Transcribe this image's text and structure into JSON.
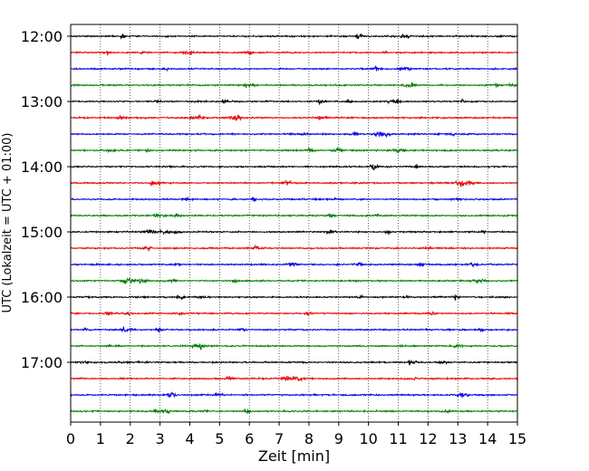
{
  "chart_data": {
    "type": "line",
    "title": "",
    "xlabel": "Zeit  [min]",
    "ylabel": "UTC (Lokalzeit = UTC + 01:00)",
    "xlim": [
      0,
      15
    ],
    "x_ticks": [
      "0",
      "1",
      "2",
      "3",
      "4",
      "5",
      "6",
      "7",
      "8",
      "9",
      "10",
      "11",
      "12",
      "13",
      "14",
      "15"
    ],
    "y_ticks": [
      "12:00",
      "13:00",
      "14:00",
      "15:00",
      "16:00",
      "17:00"
    ],
    "trace_interval_min": 15,
    "trace_start": "12:00",
    "trace_count": 24,
    "trace_colors": [
      "#000000",
      "#ff0000",
      "#0000ff",
      "#008000"
    ],
    "grid": {
      "x": true,
      "style": "dotted"
    },
    "series": [
      {
        "start": "12:00"
      },
      {
        "start": "12:15"
      },
      {
        "start": "12:30"
      },
      {
        "start": "12:45"
      },
      {
        "start": "13:00"
      },
      {
        "start": "13:15"
      },
      {
        "start": "13:30"
      },
      {
        "start": "13:45"
      },
      {
        "start": "14:00"
      },
      {
        "start": "14:15"
      },
      {
        "start": "14:30"
      },
      {
        "start": "14:45"
      },
      {
        "start": "15:00"
      },
      {
        "start": "15:15"
      },
      {
        "start": "15:30"
      },
      {
        "start": "15:45"
      },
      {
        "start": "16:00"
      },
      {
        "start": "16:15"
      },
      {
        "start": "16:30"
      },
      {
        "start": "16:45"
      },
      {
        "start": "17:00"
      },
      {
        "start": "17:15"
      },
      {
        "start": "17:30"
      },
      {
        "start": "17:45"
      }
    ]
  }
}
